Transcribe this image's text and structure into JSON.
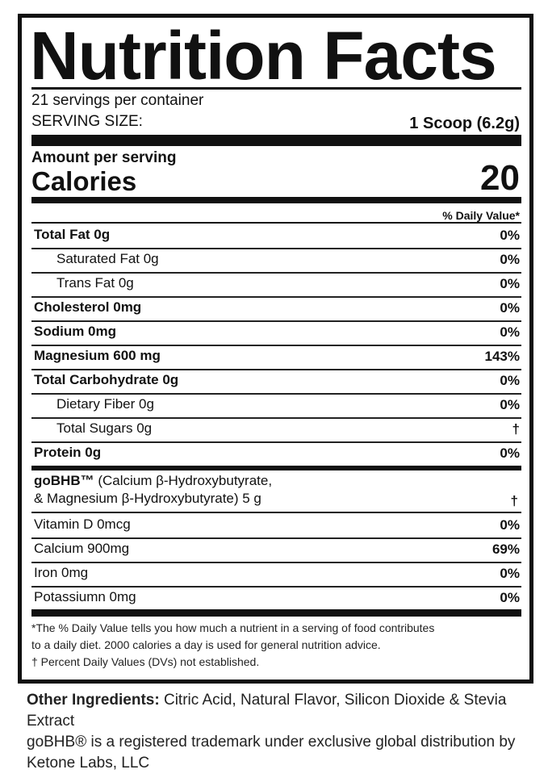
{
  "title": "Nutrition Facts",
  "servings": "21 servings per container",
  "serving_size_label": "SERVING SIZE:",
  "serving_size_value": "1 Scoop (6.2g)",
  "amount_per_serving": "Amount per serving",
  "calories_label": "Calories",
  "calories_value": "20",
  "dv_header": "% Daily Value*",
  "rows": [
    {
      "name": "Total Fat 0g",
      "dv": "0%"
    },
    {
      "name": "Saturated Fat 0g",
      "dv": "0%"
    },
    {
      "name": "Trans Fat 0g",
      "dv": "0%"
    },
    {
      "name": "Cholesterol 0mg",
      "dv": "0%"
    },
    {
      "name": "Sodium 0mg",
      "dv": "0%"
    },
    {
      "name": "Magnesium 600 mg",
      "dv": "143%"
    },
    {
      "name": "Total Carbohydrate 0g",
      "dv": "0%"
    },
    {
      "name": "Dietary Fiber 0g",
      "dv": "0%"
    },
    {
      "name": "Total Sugars 0g",
      "dv": "†"
    },
    {
      "name": "Protein 0g",
      "dv": "0%"
    }
  ],
  "gobhb": {
    "brand": "goBHB™",
    "line1": " (Calcium  β-Hydroxybutyrate,",
    "line2": "& Magnesium  β-Hydroxybutyrate) 5 g",
    "dv": "†"
  },
  "minerals": [
    {
      "name": "Vitamin D 0mcg",
      "dv": "0%"
    },
    {
      "name": "Calcium 900mg",
      "dv": "69%"
    },
    {
      "name": "Iron 0mg",
      "dv": "0%"
    },
    {
      "name": "Potassiumn 0mg",
      "dv": "0%"
    }
  ],
  "footnotes": [
    "*The % Daily Value tells you how much a nutrient in a serving of food contributes",
    "to a daily diet. 2000 calories a day is used for general nutrition advice.",
    "† Percent Daily Values (DVs) not established."
  ],
  "other_ingredients": {
    "label": "Other Ingredients:",
    "text": " Citric Acid, Natural Flavor, Silicon Dioxide & Stevia Extract",
    "trademark": "goBHB® is a registered trademark under exclusive global distribution by Ketone Labs, LLC"
  }
}
